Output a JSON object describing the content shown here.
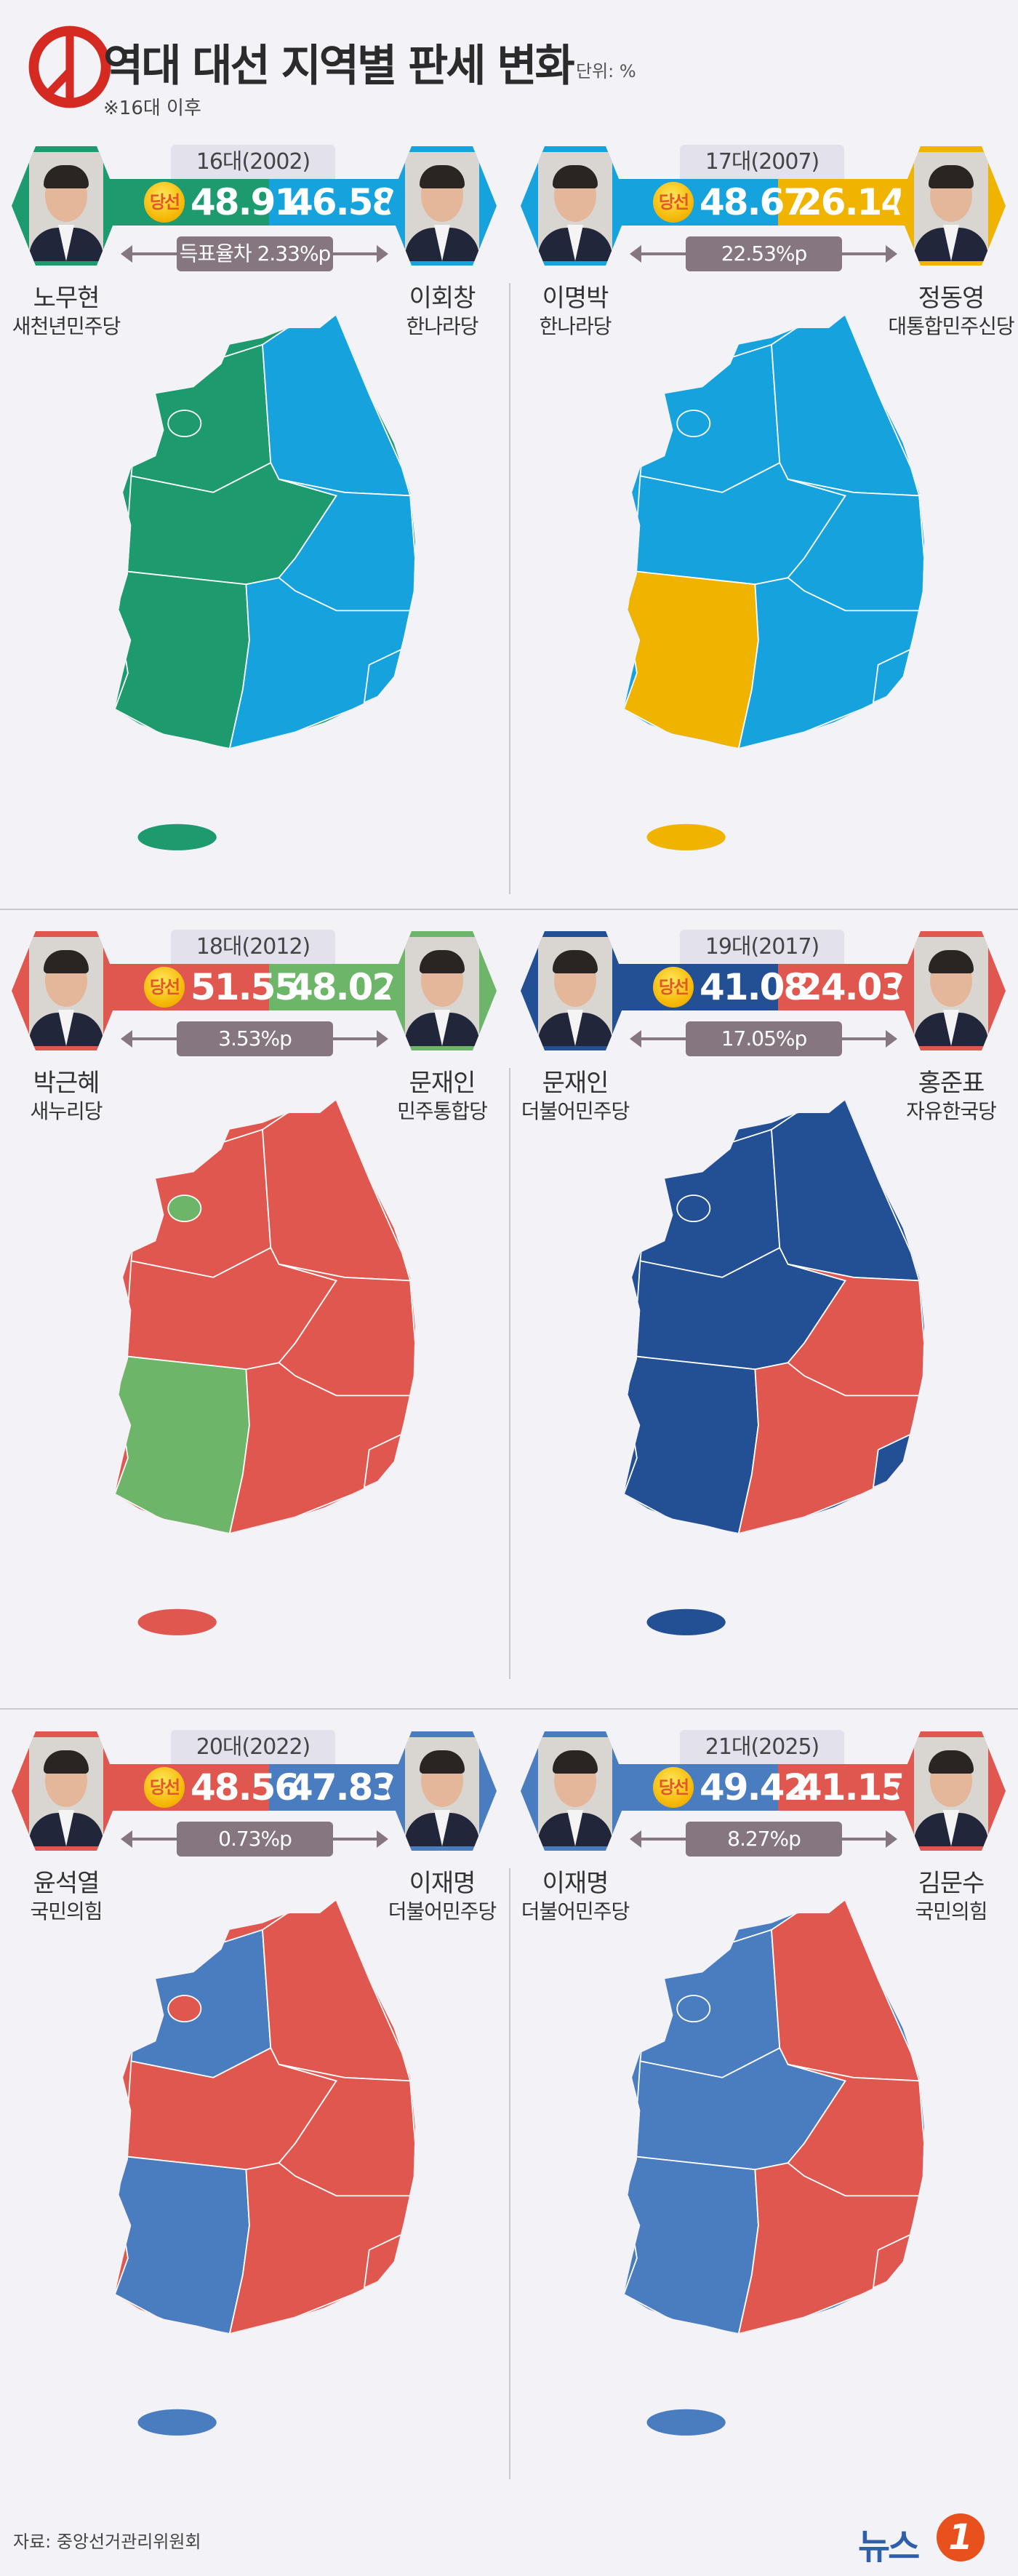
{
  "header": {
    "title": "역대 대선 지역별 판세 변화",
    "unit": "단위: %",
    "note": "※16대 이후",
    "logo_icon": "ballot-stamp-icon",
    "logo_color": "#d42a22"
  },
  "winner_badge": "당선",
  "elections": [
    {
      "year_label": "16대(2002)",
      "winner": {
        "name": "노무현",
        "party": "새천년민주당",
        "pct": "48.91",
        "color": "#1d9a6e"
      },
      "runner": {
        "name": "이회창",
        "party": "한나라당",
        "pct": "46.58",
        "color": "#16a3dd"
      },
      "gap": "득표율차 2.33%p",
      "regions": {
        "gyeonggi": "winner",
        "seoul": "winner",
        "gangwon": "runner",
        "chungcheong": "winner",
        "gyeongbuk": "runner",
        "jeolla": "winner",
        "gyeongnam": "runner",
        "busan": "runner",
        "jeju": "winner"
      }
    },
    {
      "year_label": "17대(2007)",
      "winner": {
        "name": "이명박",
        "party": "한나라당",
        "pct": "48.67",
        "color": "#16a3dd"
      },
      "runner": {
        "name": "정동영",
        "party": "대통합민주신당",
        "pct": "26.14",
        "color": "#f0b300"
      },
      "gap": "22.53%p",
      "regions": {
        "gyeonggi": "winner",
        "seoul": "winner",
        "gangwon": "winner",
        "chungcheong": "winner",
        "gyeongbuk": "winner",
        "jeolla": "runner",
        "gyeongnam": "winner",
        "busan": "winner",
        "jeju": "runner"
      }
    },
    {
      "year_label": "18대(2012)",
      "winner": {
        "name": "박근혜",
        "party": "새누리당",
        "pct": "51.55",
        "color": "#e0574f"
      },
      "runner": {
        "name": "문재인",
        "party": "민주통합당",
        "pct": "48.02",
        "color": "#6db669"
      },
      "gap": "3.53%p",
      "regions": {
        "gyeonggi": "winner",
        "seoul": "runner",
        "gangwon": "winner",
        "chungcheong": "winner",
        "gyeongbuk": "winner",
        "jeolla": "runner",
        "gyeongnam": "winner",
        "busan": "winner",
        "jeju": "winner"
      }
    },
    {
      "year_label": "19대(2017)",
      "winner": {
        "name": "문재인",
        "party": "더불어민주당",
        "pct": "41.08",
        "color": "#234f95"
      },
      "runner": {
        "name": "홍준표",
        "party": "자유한국당",
        "pct": "24.03",
        "color": "#e0574f"
      },
      "gap": "17.05%p",
      "regions": {
        "gyeonggi": "winner",
        "seoul": "winner",
        "gangwon": "winner",
        "chungcheong": "winner",
        "gyeongbuk": "runner",
        "jeolla": "winner",
        "gyeongnam": "runner",
        "busan": "winner",
        "jeju": "winner"
      }
    },
    {
      "year_label": "20대(2022)",
      "winner": {
        "name": "윤석열",
        "party": "국민의힘",
        "pct": "48.56",
        "color": "#e0574f"
      },
      "runner": {
        "name": "이재명",
        "party": "더불어민주당",
        "pct": "47.83",
        "color": "#4a7dbf"
      },
      "gap": "0.73%p",
      "regions": {
        "gyeonggi": "runner",
        "seoul": "winner",
        "gangwon": "winner",
        "chungcheong": "winner",
        "gyeongbuk": "winner",
        "jeolla": "runner",
        "gyeongnam": "winner",
        "busan": "winner",
        "jeju": "runner"
      }
    },
    {
      "year_label": "21대(2025)",
      "winner": {
        "name": "이재명",
        "party": "더불어민주당",
        "pct": "49.42",
        "color": "#4a7dbf"
      },
      "runner": {
        "name": "김문수",
        "party": "국민의힘",
        "pct": "41.15",
        "color": "#e0574f"
      },
      "gap": "8.27%p",
      "regions": {
        "gyeonggi": "winner",
        "seoul": "winner",
        "gangwon": "runner",
        "chungcheong": "winner",
        "gyeongbuk": "runner",
        "jeolla": "winner",
        "gyeongnam": "runner",
        "busan": "runner",
        "jeju": "winner"
      }
    }
  ],
  "footer": {
    "source": "자료: 중앙선거관리위원회",
    "brand": "뉴스",
    "brand_number": "1"
  }
}
